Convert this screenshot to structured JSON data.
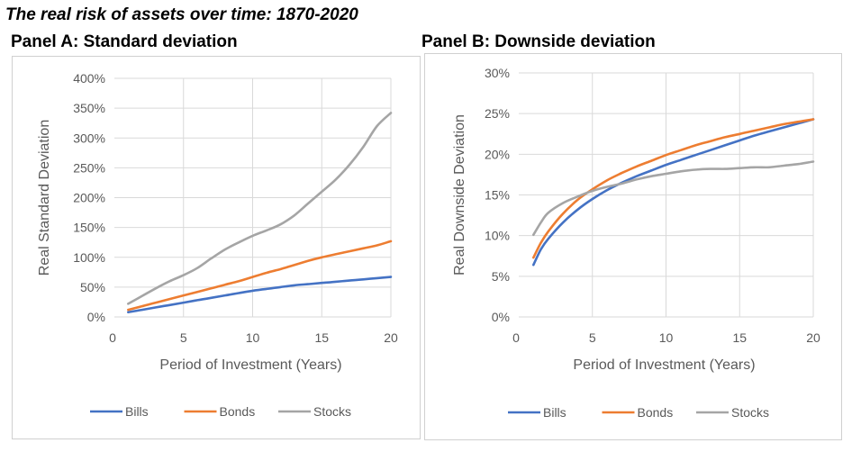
{
  "title": "The real risk of assets over time: 1870-2020",
  "chart_data": [
    {
      "type": "line",
      "title": "Panel A: Standard deviation",
      "xlabel": "Period of Investment (Years)",
      "ylabel": "Real Standard Deviation",
      "xlim": [
        0,
        20
      ],
      "ylim": [
        0,
        400
      ],
      "x_ticks": [
        0,
        5,
        10,
        15,
        20
      ],
      "x_tick_labels": [
        "0",
        "5",
        "10",
        "15",
        "20"
      ],
      "y_ticks": [
        0,
        50,
        100,
        150,
        200,
        250,
        300,
        350,
        400
      ],
      "y_tick_labels": [
        "0%",
        "50%",
        "100%",
        "150%",
        "200%",
        "250%",
        "300%",
        "350%",
        "400%"
      ],
      "grid": true,
      "legend": "bottom",
      "series": [
        {
          "name": "Bills",
          "color": "#4472C4",
          "x": [
            1,
            2,
            3,
            4,
            5,
            6,
            7,
            8,
            9,
            10,
            11,
            12,
            13,
            14,
            15,
            16,
            17,
            18,
            19,
            20
          ],
          "values": [
            8,
            12,
            16,
            20,
            24,
            28,
            32,
            36,
            40,
            44,
            47,
            50,
            53,
            55,
            57,
            59,
            61,
            63,
            65,
            67
          ]
        },
        {
          "name": "Bonds",
          "color": "#ED7D31",
          "x": [
            1,
            2,
            3,
            4,
            5,
            6,
            7,
            8,
            9,
            10,
            11,
            12,
            13,
            14,
            15,
            16,
            17,
            18,
            19,
            20
          ],
          "values": [
            12,
            18,
            24,
            30,
            36,
            42,
            48,
            54,
            60,
            67,
            74,
            80,
            87,
            94,
            100,
            105,
            110,
            115,
            120,
            127
          ]
        },
        {
          "name": "Stocks",
          "color": "#A5A5A5",
          "x": [
            1,
            2,
            3,
            4,
            5,
            6,
            7,
            8,
            9,
            10,
            11,
            12,
            13,
            14,
            15,
            16,
            17,
            18,
            19,
            20
          ],
          "values": [
            22,
            35,
            48,
            60,
            70,
            82,
            98,
            113,
            125,
            136,
            145,
            155,
            170,
            190,
            210,
            230,
            255,
            285,
            320,
            342
          ]
        }
      ]
    },
    {
      "type": "line",
      "title": "Panel B: Downside deviation",
      "xlabel": "Period of Investment (Years)",
      "ylabel": "Real Downside Deviation",
      "xlim": [
        0,
        20
      ],
      "ylim": [
        0,
        30
      ],
      "x_ticks": [
        0,
        5,
        10,
        15,
        20
      ],
      "x_tick_labels": [
        "0",
        "5",
        "10",
        "15",
        "20"
      ],
      "y_ticks": [
        0,
        5,
        10,
        15,
        20,
        25,
        30
      ],
      "y_tick_labels": [
        "0%",
        "5%",
        "10%",
        "15%",
        "20%",
        "25%",
        "30%"
      ],
      "grid": true,
      "legend": "bottom",
      "series": [
        {
          "name": "Bills",
          "color": "#4472C4",
          "x": [
            1,
            1.5,
            2,
            3,
            4,
            5,
            6,
            7,
            8,
            9,
            10,
            11,
            12,
            13,
            14,
            15,
            16,
            17,
            18,
            19,
            20
          ],
          "values": [
            6.4,
            8.3,
            9.6,
            11.6,
            13.2,
            14.5,
            15.6,
            16.5,
            17.3,
            18.0,
            18.7,
            19.3,
            19.9,
            20.5,
            21.1,
            21.7,
            22.3,
            22.8,
            23.3,
            23.8,
            24.3
          ]
        },
        {
          "name": "Bonds",
          "color": "#ED7D31",
          "x": [
            1,
            1.5,
            2,
            3,
            4,
            5,
            6,
            7,
            8,
            9,
            10,
            11,
            12,
            13,
            14,
            15,
            16,
            17,
            18,
            19,
            20
          ],
          "values": [
            7.3,
            9.1,
            10.5,
            12.7,
            14.4,
            15.7,
            16.8,
            17.7,
            18.5,
            19.2,
            19.9,
            20.5,
            21.1,
            21.6,
            22.1,
            22.5,
            22.9,
            23.3,
            23.7,
            24.0,
            24.3
          ]
        },
        {
          "name": "Stocks",
          "color": "#A5A5A5",
          "x": [
            1,
            1.5,
            2,
            3,
            4,
            5,
            6,
            7,
            8,
            9,
            10,
            11,
            12,
            13,
            14,
            15,
            16,
            17,
            18,
            19,
            20
          ],
          "values": [
            10.1,
            11.6,
            12.8,
            14.0,
            14.8,
            15.5,
            16.0,
            16.4,
            16.9,
            17.3,
            17.6,
            17.9,
            18.1,
            18.2,
            18.2,
            18.3,
            18.4,
            18.4,
            18.6,
            18.8,
            19.1
          ]
        }
      ]
    }
  ]
}
